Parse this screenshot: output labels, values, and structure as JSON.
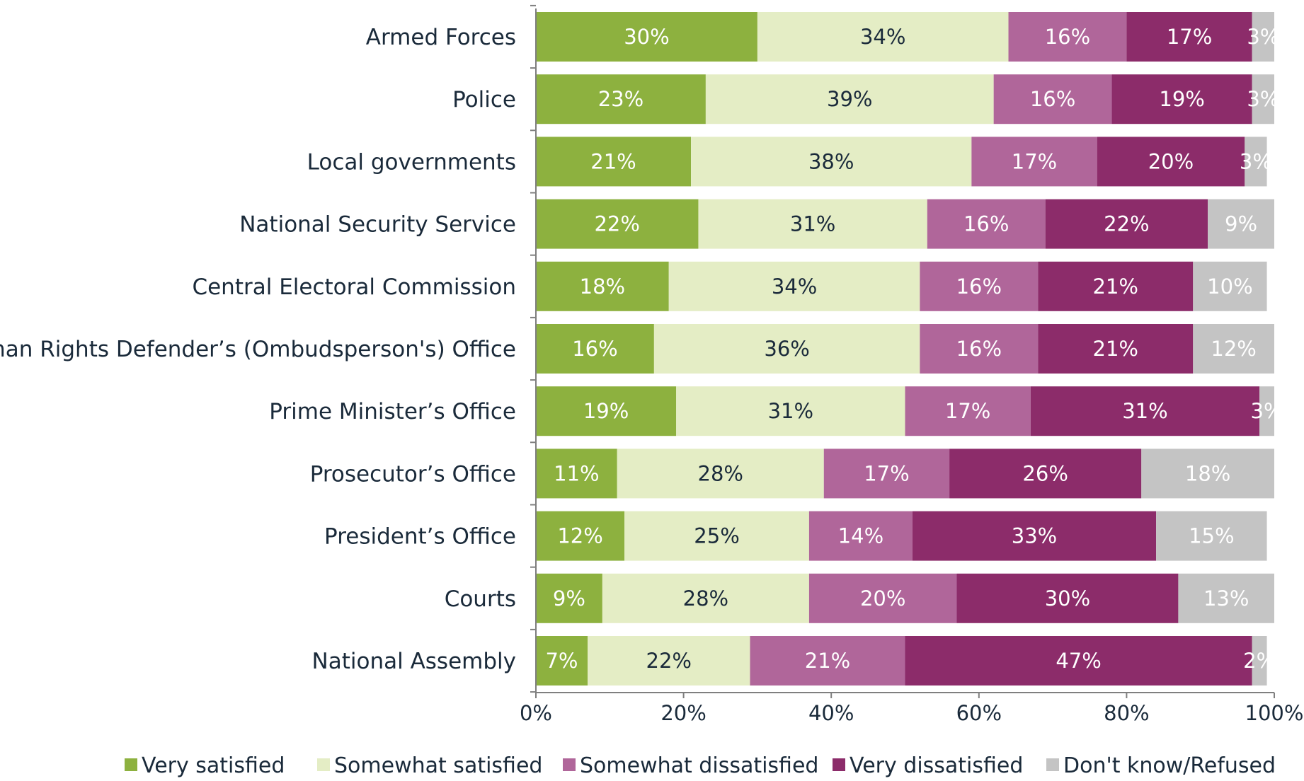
{
  "chart_data": {
    "type": "bar",
    "orientation": "horizontal",
    "stacked": true,
    "title": "",
    "xlabel": "",
    "ylabel": "",
    "xlim": [
      0,
      100
    ],
    "x_ticks": [
      "0%",
      "20%",
      "40%",
      "60%",
      "80%",
      "100%"
    ],
    "grid": false,
    "legend_position": "bottom",
    "categories": [
      "Armed Forces",
      "Police",
      "Local governments",
      "National Security Service",
      "Central Electoral Commission",
      "Human Rights Defender’s (Ombudsperson's) Office",
      "Prime Minister’s Office",
      "Prosecutor’s Office",
      "President’s Office",
      "Courts",
      "National Assembly"
    ],
    "series": [
      {
        "name": "Very satisfied",
        "color": "#8db13f",
        "label_color": "#ffffff",
        "values": [
          30,
          23,
          21,
          22,
          18,
          16,
          19,
          11,
          12,
          9,
          7
        ]
      },
      {
        "name": "Somewhat satisfied",
        "color": "#e4edc5",
        "label_color": "#1a2a3a",
        "values": [
          34,
          39,
          38,
          31,
          34,
          36,
          31,
          28,
          25,
          28,
          22
        ]
      },
      {
        "name": "Somewhat dissatisfied",
        "color": "#b0669a",
        "label_color": "#ffffff",
        "values": [
          16,
          16,
          17,
          16,
          16,
          16,
          17,
          17,
          14,
          20,
          21
        ]
      },
      {
        "name": "Very dissatisfied",
        "color": "#8c2c6a",
        "label_color": "#ffffff",
        "values": [
          17,
          19,
          20,
          22,
          21,
          21,
          31,
          26,
          33,
          30,
          47
        ]
      },
      {
        "name": "Don't know/Refused",
        "color": "#c4c4c4",
        "label_color": "#ffffff",
        "values": [
          3,
          3,
          3,
          9,
          10,
          12,
          3,
          18,
          15,
          13,
          2
        ]
      }
    ]
  }
}
